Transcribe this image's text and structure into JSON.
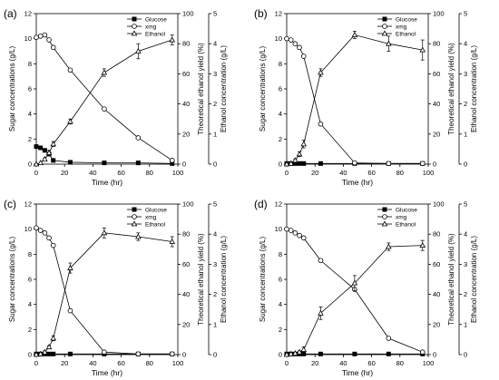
{
  "chart_data": [
    {
      "type": "line",
      "panel_label": "(a)",
      "xlabel": "Time (hr)",
      "ylabel_left": "Sugar concentrations (g/L)",
      "ylabel_right_1": "Theoretical ethanol yield (%)",
      "ylabel_right_2": "Ethanol concentration (g/L)",
      "xlim": [
        0,
        100
      ],
      "xticks": [
        0,
        20,
        40,
        60,
        80,
        100
      ],
      "ylim": [
        0,
        12
      ],
      "yticks": [
        0,
        2,
        4,
        6,
        8,
        10,
        12
      ],
      "ylim_right_1": [
        0,
        100
      ],
      "yticks_right_1": [
        0,
        20,
        40,
        60,
        80,
        100
      ],
      "ylim_right_2": [
        0,
        5
      ],
      "yticks_right_2": [
        0,
        1,
        2,
        3,
        4,
        5
      ],
      "legend": [
        "Glucose",
        "xmg",
        "Ethanol"
      ],
      "legend_position": "top-right",
      "series": [
        {
          "name": "Glucose",
          "marker": "filled-square",
          "x": [
            0,
            3,
            6,
            9,
            12,
            24,
            48,
            72,
            96
          ],
          "y": [
            1.4,
            1.3,
            1.1,
            0.8,
            0.3,
            0.15,
            0.1,
            0.1,
            0.05
          ]
        },
        {
          "name": "xmg",
          "marker": "open-circle",
          "x": [
            0,
            3,
            6,
            9,
            12,
            24,
            48,
            72,
            96
          ],
          "y": [
            10.1,
            10.2,
            10.3,
            9.9,
            9.3,
            7.5,
            4.4,
            2.1,
            0.3
          ]
        },
        {
          "name": "Ethanol",
          "marker": "open-triangle",
          "x": [
            0,
            3,
            6,
            9,
            12,
            24,
            48,
            72,
            96
          ],
          "y": [
            0.0,
            0.1,
            0.4,
            0.9,
            1.6,
            3.4,
            7.3,
            9.0,
            9.9
          ],
          "err": [
            0,
            0,
            0.1,
            0.2,
            0.2,
            0.2,
            0.3,
            0.6,
            0.4
          ]
        }
      ]
    },
    {
      "type": "line",
      "panel_label": "(b)",
      "xlabel": "Time (hr)",
      "ylabel_left": "Sugar concentrations (g/L)",
      "ylabel_right_1": "Theoretical ethanol yield (%)",
      "ylabel_right_2": "Ethanol concentration (g/L)",
      "xlim": [
        0,
        100
      ],
      "xticks": [
        0,
        20,
        40,
        60,
        80,
        100
      ],
      "ylim": [
        0,
        12
      ],
      "yticks": [
        0,
        2,
        4,
        6,
        8,
        10,
        12
      ],
      "ylim_right_1": [
        0,
        100
      ],
      "yticks_right_1": [
        0,
        20,
        40,
        60,
        80,
        100
      ],
      "ylim_right_2": [
        0,
        5
      ],
      "yticks_right_2": [
        0,
        1,
        2,
        3,
        4,
        5
      ],
      "legend": [
        "Glucose",
        "xmg",
        "Ethanol"
      ],
      "legend_position": "top-right",
      "series": [
        {
          "name": "Glucose",
          "marker": "filled-square",
          "x": [
            0,
            3,
            6,
            9,
            12,
            24,
            48,
            72,
            96
          ],
          "y": [
            0.05,
            0.05,
            0.05,
            0.05,
            0.05,
            0.05,
            0.05,
            0.05,
            0.05
          ]
        },
        {
          "name": "xmg",
          "marker": "open-circle",
          "x": [
            0,
            3,
            6,
            9,
            12,
            24,
            48,
            72,
            96
          ],
          "y": [
            10.0,
            9.9,
            9.6,
            9.3,
            8.6,
            3.2,
            0.1,
            0.05,
            0.05
          ]
        },
        {
          "name": "Ethanol",
          "marker": "open-triangle",
          "x": [
            0,
            3,
            6,
            9,
            12,
            24,
            48,
            72,
            96
          ],
          "y": [
            0.0,
            0.05,
            0.3,
            0.8,
            1.6,
            7.3,
            10.3,
            9.6,
            9.1
          ],
          "err": [
            0,
            0,
            0.1,
            0.2,
            0.3,
            0.3,
            0.3,
            0.6,
            0.8
          ]
        }
      ]
    },
    {
      "type": "line",
      "panel_label": "(c)",
      "xlabel": "Time (hr)",
      "ylabel_left": "Sugar concentrations (g/L)",
      "ylabel_right_1": "Theoretical ethanol yield (%)",
      "ylabel_right_2": "Ethanol concentration (g/L)",
      "xlim": [
        0,
        100
      ],
      "xticks": [
        0,
        20,
        40,
        60,
        80,
        100
      ],
      "ylim": [
        0,
        12
      ],
      "yticks": [
        0,
        2,
        4,
        6,
        8,
        10,
        12
      ],
      "ylim_right_1": [
        0,
        100
      ],
      "yticks_right_1": [
        0,
        20,
        40,
        60,
        80,
        100
      ],
      "ylim_right_2": [
        0,
        5
      ],
      "yticks_right_2": [
        0,
        1,
        2,
        3,
        4,
        5
      ],
      "legend": [
        "Glucose",
        "xmg",
        "Ethanol"
      ],
      "legend_position": "top-right",
      "series": [
        {
          "name": "Glucose",
          "marker": "filled-square",
          "x": [
            0,
            3,
            6,
            9,
            12,
            24,
            48,
            72,
            96
          ],
          "y": [
            0.05,
            0.05,
            0.05,
            0.05,
            0.05,
            0.05,
            0.05,
            0.05,
            0.05
          ]
        },
        {
          "name": "xmg",
          "marker": "open-circle",
          "x": [
            0,
            3,
            6,
            9,
            12,
            24,
            48,
            72,
            96
          ],
          "y": [
            10.1,
            9.9,
            9.7,
            9.3,
            8.7,
            3.5,
            0.2,
            0.05,
            0.05
          ]
        },
        {
          "name": "Ethanol",
          "marker": "open-triangle",
          "x": [
            0,
            3,
            6,
            9,
            12,
            24,
            48,
            72,
            96
          ],
          "y": [
            0.0,
            0.05,
            0.2,
            0.6,
            1.3,
            6.9,
            9.7,
            9.4,
            9.0
          ],
          "err": [
            0,
            0,
            0.1,
            0.1,
            0.2,
            0.4,
            0.4,
            0.3,
            0.4
          ]
        }
      ]
    },
    {
      "type": "line",
      "panel_label": "(d)",
      "xlabel": "Time (hr)",
      "ylabel_left": "Sugar concentrations (g/L)",
      "ylabel_right_1": "Theoretical ethanol yield (%)",
      "ylabel_right_2": "Ethanol concentration (g/L)",
      "xlim": [
        0,
        100
      ],
      "xticks": [
        0,
        20,
        40,
        60,
        80,
        100
      ],
      "ylim": [
        0,
        12
      ],
      "yticks": [
        0,
        2,
        4,
        6,
        8,
        10,
        12
      ],
      "ylim_right_1": [
        0,
        100
      ],
      "yticks_right_1": [
        0,
        20,
        40,
        60,
        80,
        100
      ],
      "ylim_right_2": [
        0,
        5
      ],
      "yticks_right_2": [
        0,
        1,
        2,
        3,
        4,
        5
      ],
      "legend": [
        "Glucose",
        "xmg",
        "Ethanol"
      ],
      "legend_position": "top-right",
      "series": [
        {
          "name": "Glucose",
          "marker": "filled-square",
          "x": [
            0,
            3,
            6,
            9,
            12,
            24,
            48,
            72,
            96
          ],
          "y": [
            0.05,
            0.05,
            0.05,
            0.05,
            0.05,
            0.05,
            0.05,
            0.05,
            0.05
          ]
        },
        {
          "name": "xmg",
          "marker": "open-circle",
          "x": [
            0,
            3,
            6,
            9,
            12,
            24,
            48,
            72,
            96
          ],
          "y": [
            10.0,
            9.9,
            9.7,
            9.5,
            9.3,
            7.5,
            5.2,
            1.3,
            0.2
          ]
        },
        {
          "name": "Ethanol",
          "marker": "open-triangle",
          "x": [
            0,
            3,
            6,
            9,
            12,
            24,
            48,
            72,
            96
          ],
          "y": [
            0.0,
            0.05,
            0.1,
            0.2,
            0.4,
            3.3,
            5.7,
            8.6,
            8.7
          ],
          "err": [
            0,
            0,
            0,
            0.1,
            0.2,
            0.5,
            0.6,
            0.3,
            0.4
          ]
        }
      ]
    }
  ]
}
